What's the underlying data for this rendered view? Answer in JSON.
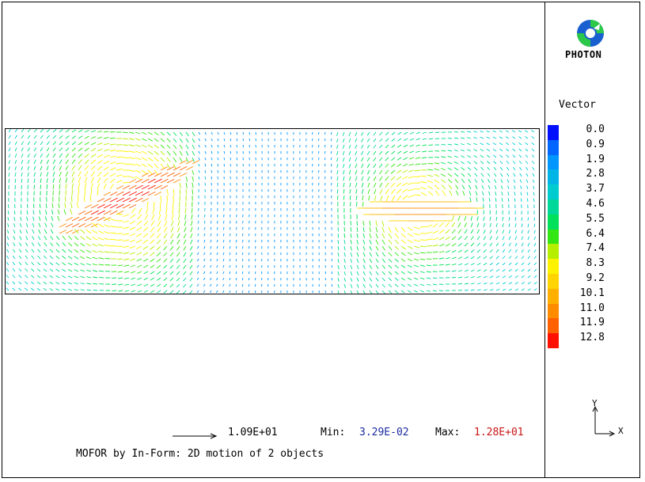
{
  "logo": {
    "text": "PHOTON",
    "icon": "photon-logo-icon"
  },
  "legend": {
    "title": "Vector",
    "items": [
      {
        "label": "0.0",
        "color": "#0010ff"
      },
      {
        "label": "0.9",
        "color": "#0066ff"
      },
      {
        "label": "1.9",
        "color": "#0096ff"
      },
      {
        "label": "2.8",
        "color": "#00b4e6"
      },
      {
        "label": "3.7",
        "color": "#00ccd0"
      },
      {
        "label": "4.6",
        "color": "#00d89a"
      },
      {
        "label": "5.5",
        "color": "#00e05a"
      },
      {
        "label": "6.4",
        "color": "#34e614"
      },
      {
        "label": "7.4",
        "color": "#b6ee00"
      },
      {
        "label": "8.3",
        "color": "#fff200"
      },
      {
        "label": "9.2",
        "color": "#ffd400"
      },
      {
        "label": "10.1",
        "color": "#ffb000"
      },
      {
        "label": "11.0",
        "color": "#ff8c00"
      },
      {
        "label": "11.9",
        "color": "#ff6000"
      },
      {
        "label": "12.8",
        "color": "#ff1000"
      }
    ]
  },
  "reference_vector": {
    "value": "1.09E+01"
  },
  "stats": {
    "min_label": "Min:",
    "min_value": "3.29E-02",
    "max_label": "Max:",
    "max_value": "1.28E+01",
    "min_color": "#1a2aa0",
    "max_color": "#c81414"
  },
  "caption": "MOFOR by In-Form: 2D motion of 2 objects",
  "axes": {
    "y": "Y",
    "x": "X"
  }
}
